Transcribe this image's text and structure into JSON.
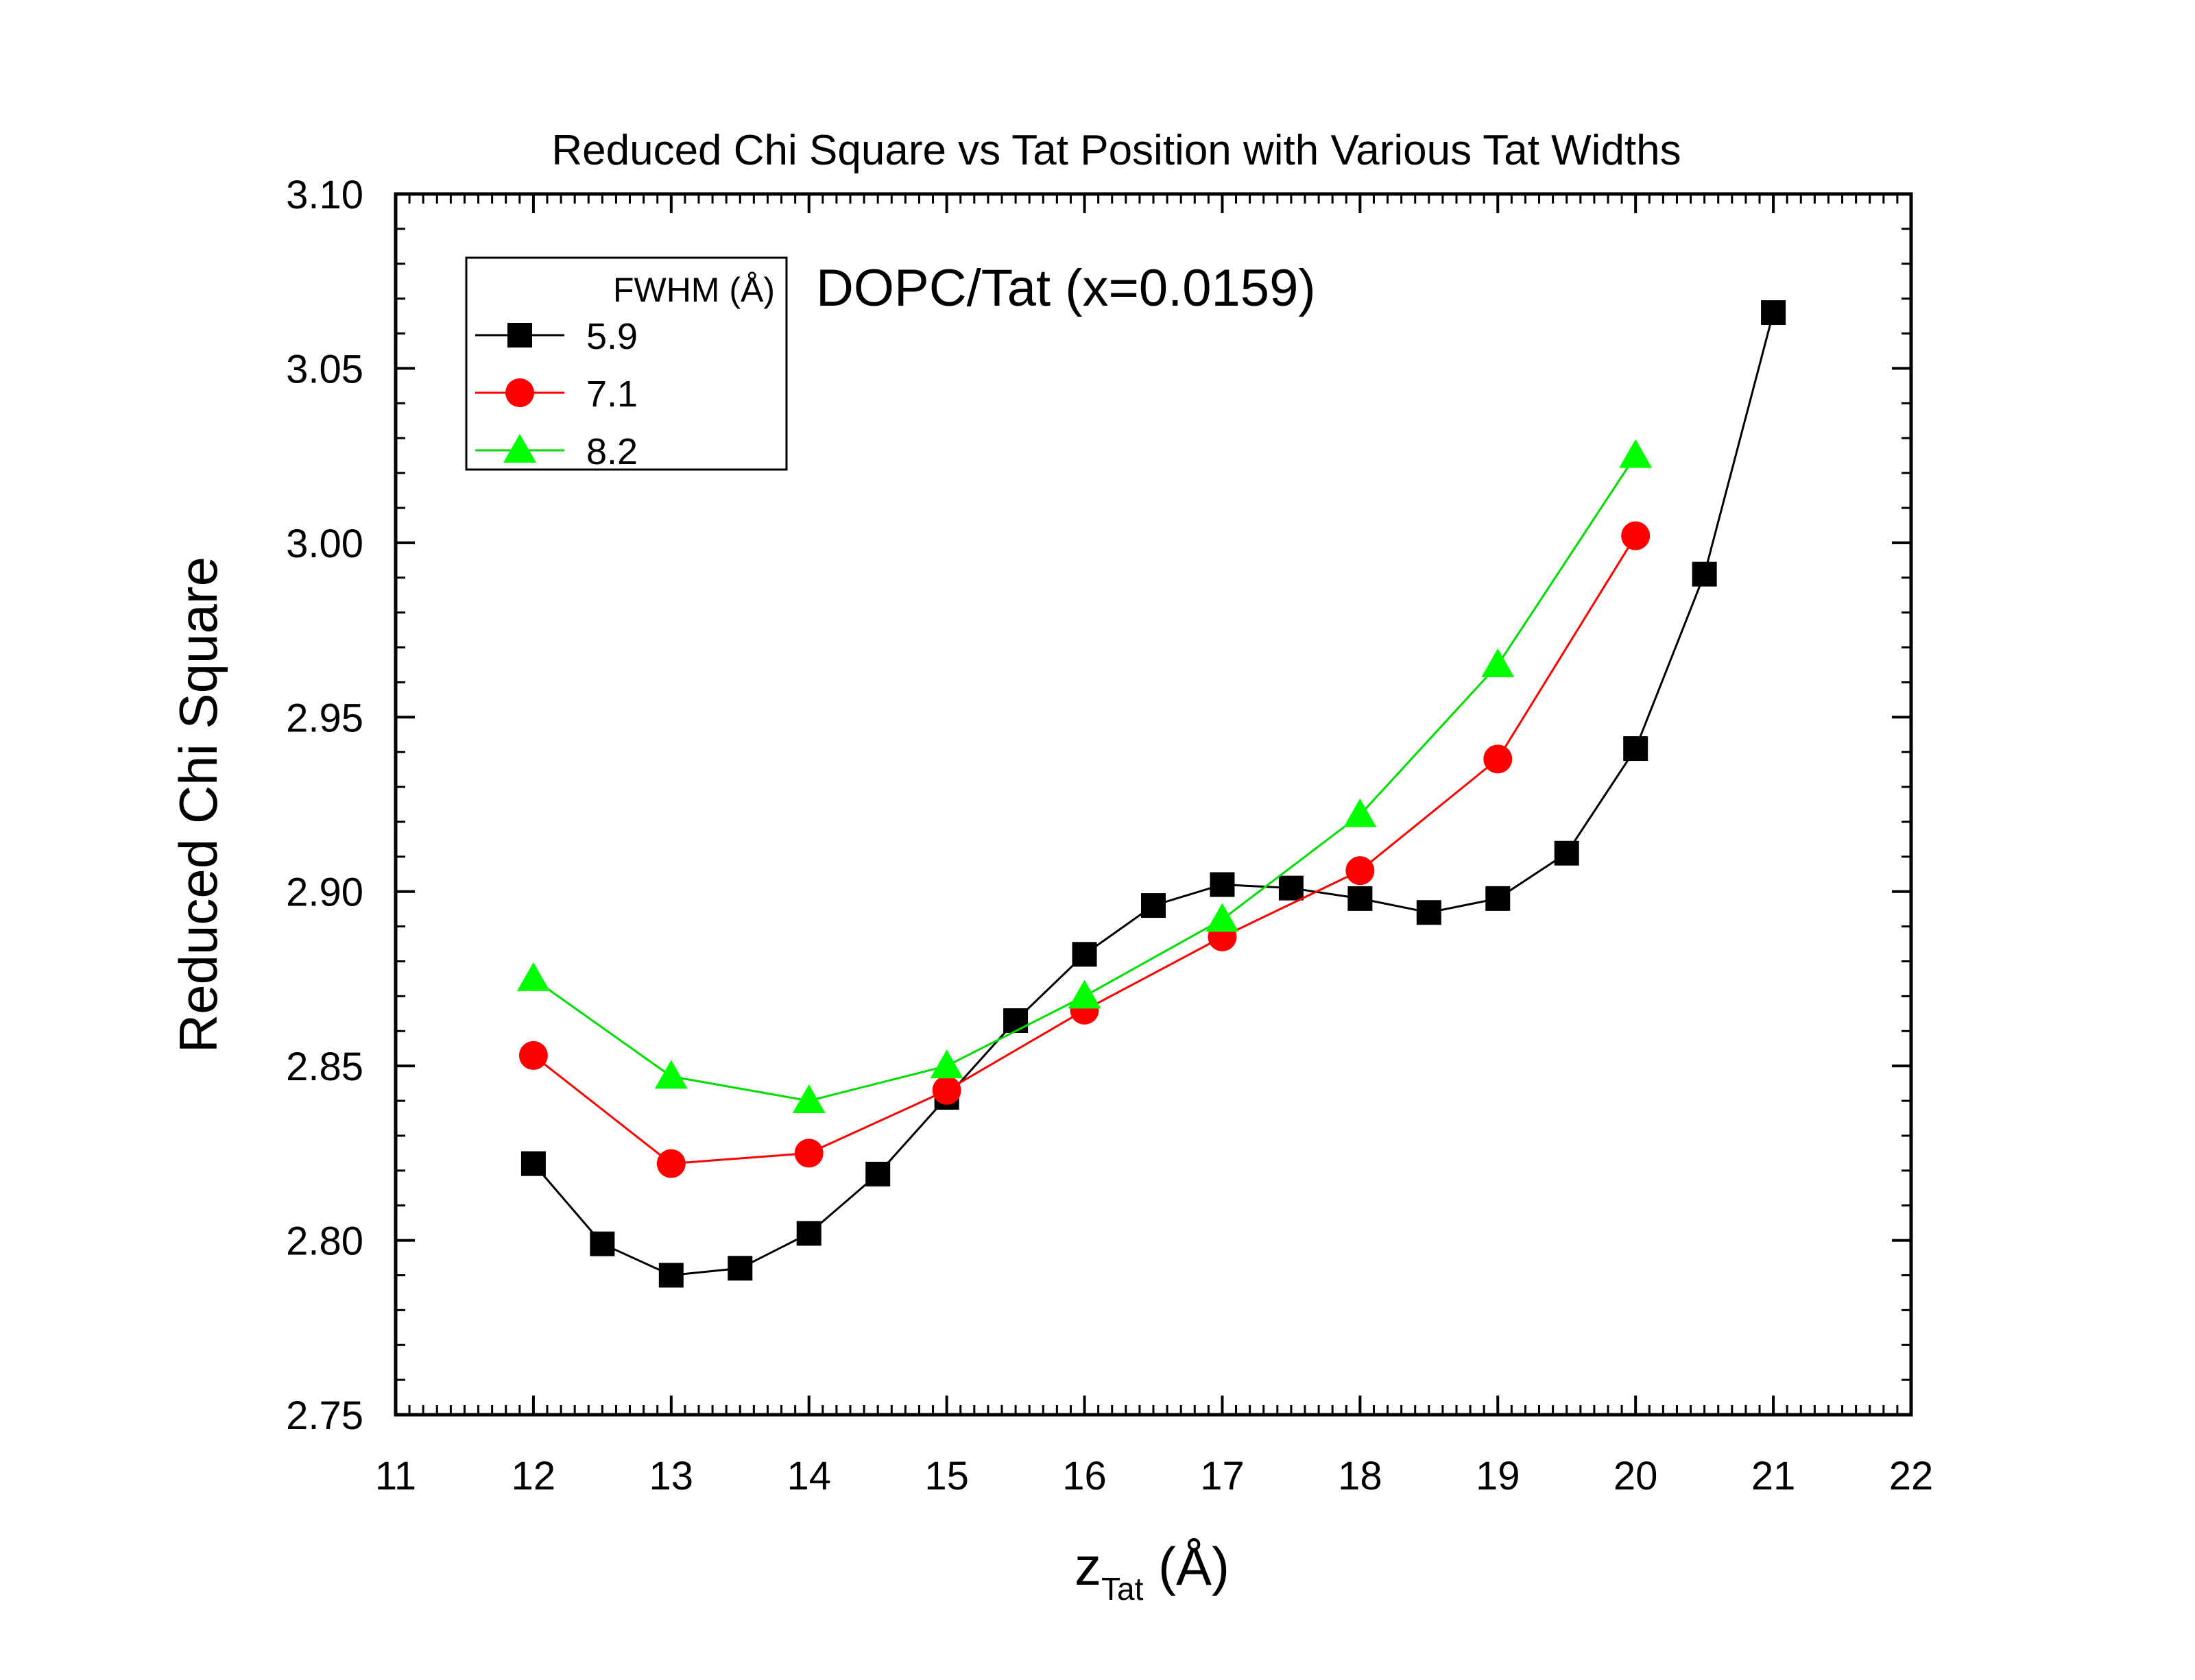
{
  "chart_data": {
    "type": "line",
    "title": "Reduced Chi Square vs Tat Position with Various Tat Widths",
    "annotation": "DOPC/Tat (x=0.0159)",
    "xlabel_main": "z",
    "xlabel_sub": "Tat",
    "xlabel_unit": " (Å)",
    "ylabel": "Reduced Chi Square",
    "xlim": [
      11,
      22
    ],
    "ylim": [
      2.75,
      3.1
    ],
    "xticks": [
      "11",
      "12",
      "13",
      "14",
      "15",
      "16",
      "17",
      "18",
      "19",
      "20",
      "21",
      "22"
    ],
    "yticks": [
      "2.75",
      "2.80",
      "2.85",
      "2.90",
      "2.95",
      "3.00",
      "3.05",
      "3.10"
    ],
    "grid": false,
    "legend_placement": "top-left",
    "legend_title": "FWHM (Å)",
    "series": [
      {
        "name": "5.9",
        "color": "#000000",
        "marker": "square",
        "x": [
          12,
          12.5,
          13,
          13.5,
          14,
          14.5,
          15,
          15.5,
          16,
          16.5,
          17,
          17.5,
          18,
          18.5,
          19,
          19.5,
          20,
          20.5,
          21
        ],
        "y": [
          2.822,
          2.799,
          2.79,
          2.792,
          2.802,
          2.819,
          2.841,
          2.863,
          2.882,
          2.896,
          2.902,
          2.901,
          2.898,
          2.894,
          2.898,
          2.911,
          2.941,
          2.991,
          3.066
        ]
      },
      {
        "name": "7.1",
        "color": "#ff0000",
        "marker": "circle",
        "x": [
          12,
          13,
          14,
          15,
          16,
          17,
          18,
          19,
          20
        ],
        "y": [
          2.853,
          2.822,
          2.825,
          2.843,
          2.866,
          2.887,
          2.906,
          2.938,
          3.002
        ]
      },
      {
        "name": "8.2",
        "color": "#00ff00",
        "marker": "triangle",
        "x": [
          12,
          13,
          14,
          15,
          16,
          17,
          18,
          19,
          20
        ],
        "y": [
          2.875,
          2.847,
          2.84,
          2.85,
          2.87,
          2.892,
          2.922,
          2.965,
          3.025
        ]
      }
    ]
  }
}
